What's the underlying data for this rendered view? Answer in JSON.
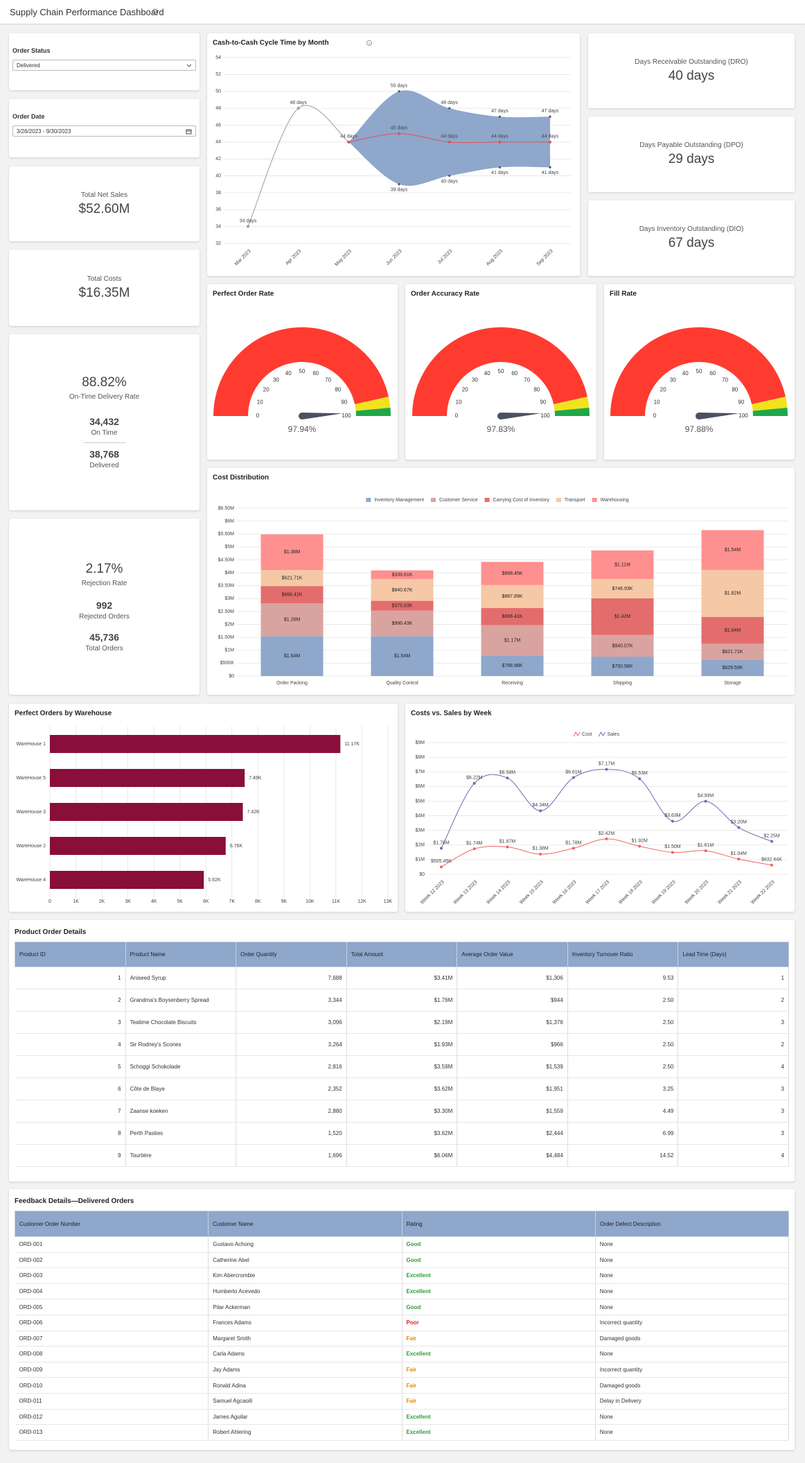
{
  "header": {
    "title": "Supply Chain Performance Dashboard"
  },
  "filters": {
    "order_status": {
      "label": "Order Status",
      "value": "Delivered"
    },
    "order_date": {
      "label": "Order Date",
      "value": "3/26/2023 - 9/30/2023"
    }
  },
  "kpis": {
    "total_net_sales": {
      "label": "Total Net Sales",
      "value": "$52.60M"
    },
    "total_costs": {
      "label": "Total Costs",
      "value": "$16.35M"
    },
    "on_time": {
      "rate": "88.82%",
      "rate_label": "On-Time Delivery Rate",
      "on_time": "34,432",
      "on_time_label": "On Time",
      "delivered": "38,768",
      "delivered_label": "Delivered"
    },
    "rejection": {
      "rate": "2.17%",
      "rate_label": "Rejection Rate",
      "rejected": "992",
      "rejected_label": "Rejected Orders",
      "total": "45,736",
      "total_label": "Total Orders"
    },
    "dro": {
      "label": "Days Receivable Outstanding (DRO)",
      "value": "40 days"
    },
    "dpo": {
      "label": "Days Payable Outstanding (DPO)",
      "value": "29 days"
    },
    "dio": {
      "label": "Days Inventory Outstanding (DIO)",
      "value": "67 days"
    }
  },
  "chart_data": [
    {
      "type": "line",
      "title": "Cash-to-Cash Cycle Time by Month",
      "categories": [
        "Mar 2023",
        "Apr 2023",
        "May 2023",
        "Jun 2023",
        "Jul 2023",
        "Aug 2023",
        "Sep 2023"
      ],
      "ylim": [
        32,
        54
      ],
      "yticks": [
        32,
        34,
        36,
        38,
        40,
        42,
        44,
        46,
        48,
        50,
        52,
        54
      ],
      "grid": true,
      "range": {
        "color": "#8ea7cb",
        "upper": [
          null,
          null,
          44,
          50,
          48,
          47,
          47
        ],
        "lower": [
          null,
          null,
          44,
          39,
          40,
          41,
          41
        ],
        "upper_labels": [
          null,
          null,
          null,
          "50 days",
          "48 days",
          "47 days",
          "47 days"
        ],
        "lower_labels": [
          null,
          null,
          null,
          "39 days",
          "40 days",
          "41 days",
          "41 days"
        ]
      },
      "series": [
        {
          "color": "#9a9a9a",
          "values": [
            34,
            48,
            44,
            null,
            null,
            null,
            null
          ],
          "value_labels": [
            "34 days",
            "48 days",
            null,
            null,
            null,
            null,
            null
          ]
        },
        {
          "color": "#e05252",
          "values": [
            null,
            null,
            44,
            45,
            44,
            44,
            44
          ],
          "value_labels": [
            null,
            null,
            "44 days",
            "45 days",
            "44 days",
            "44 days",
            "44 days"
          ]
        }
      ]
    },
    {
      "type": "gauge",
      "title": "Perfect Order Rate",
      "value": 97.94,
      "value_label": "97.94%",
      "lim": [
        0,
        100
      ],
      "ticks": [
        0,
        10,
        20,
        30,
        40,
        50,
        60,
        70,
        80,
        90,
        100
      ],
      "bands": [
        {
          "from": 0,
          "to": 93,
          "color": "#ff3b30"
        },
        {
          "from": 93,
          "to": 97,
          "color": "#f2e21c"
        },
        {
          "from": 97,
          "to": 100,
          "color": "#1fa84a"
        }
      ],
      "needle_color": "#4a5160"
    },
    {
      "type": "gauge",
      "title": "Order Accuracy Rate",
      "value": 97.83,
      "value_label": "97.83%",
      "lim": [
        0,
        100
      ],
      "ticks": [
        0,
        10,
        20,
        30,
        40,
        50,
        60,
        70,
        80,
        90,
        100
      ],
      "bands": [
        {
          "from": 0,
          "to": 93,
          "color": "#ff3b30"
        },
        {
          "from": 93,
          "to": 97,
          "color": "#f2e21c"
        },
        {
          "from": 97,
          "to": 100,
          "color": "#1fa84a"
        }
      ],
      "needle_color": "#4a5160"
    },
    {
      "type": "gauge",
      "title": "Fill Rate",
      "value": 97.88,
      "value_label": "97.88%",
      "lim": [
        0,
        100
      ],
      "ticks": [
        0,
        10,
        20,
        30,
        40,
        50,
        60,
        70,
        80,
        90,
        100
      ],
      "bands": [
        {
          "from": 0,
          "to": 93,
          "color": "#ff3b30"
        },
        {
          "from": 93,
          "to": 97,
          "color": "#f2e21c"
        },
        {
          "from": 97,
          "to": 100,
          "color": "#1fa84a"
        }
      ],
      "needle_color": "#4a5160"
    },
    {
      "type": "bar",
      "stacked": true,
      "title": "Cost Distribution",
      "categories": [
        "Order Packing",
        "Quality Control",
        "Receiving",
        "Shipping",
        "Storage"
      ],
      "ylim": [
        0,
        6500000
      ],
      "yticks": [
        {
          "value": 0,
          "label": "$0"
        },
        {
          "value": 500000,
          "label": "$500K"
        },
        {
          "value": 1000000,
          "label": "$1M"
        },
        {
          "value": 1500000,
          "label": "$1.50M"
        },
        {
          "value": 2000000,
          "label": "$2M"
        },
        {
          "value": 2500000,
          "label": "$2.50M"
        },
        {
          "value": 3000000,
          "label": "$3M"
        },
        {
          "value": 3500000,
          "label": "$3.50M"
        },
        {
          "value": 4000000,
          "label": "$4M"
        },
        {
          "value": 4500000,
          "label": "$4.50M"
        },
        {
          "value": 5000000,
          "label": "$5M"
        },
        {
          "value": 5500000,
          "label": "$5.50M"
        },
        {
          "value": 6000000,
          "label": "$6M"
        },
        {
          "value": 6500000,
          "label": "$6.50M"
        }
      ],
      "grid": true,
      "series": [
        {
          "name": "Inventory Management",
          "color": "#8ea7cb",
          "values": [
            1540000,
            1540000,
            798980,
            750560,
            629590
          ],
          "value_labels": [
            "$1.54M",
            "$1.54M",
            "$798.98K",
            "$750.56K",
            "$629.59K"
          ]
        },
        {
          "name": "Customer Service",
          "color": "#d9a3a0",
          "values": [
            1280000,
            996430,
            1170000,
            840070,
            621710
          ],
          "value_labels": [
            "$1.28M",
            "$996.43K",
            "$1.17M",
            "$840.07K",
            "$621.71K"
          ]
        },
        {
          "name": "Carrying Cost of Inventory",
          "color": "#e36d6d",
          "values": [
            666410,
            375630,
            666410,
            1420000,
            1040000
          ],
          "value_labels": [
            "$666.41K",
            "$375.63K",
            "$666.41K",
            "$1.42M",
            "$1.04M"
          ]
        },
        {
          "name": "Transport",
          "color": "#f5c8a6",
          "values": [
            621710,
            840670,
            887890,
            746930,
            1820000
          ],
          "value_labels": [
            "$621.71K",
            "$840.67K",
            "$887.89K",
            "$746.93K",
            "$1.82M"
          ]
        },
        {
          "name": "Warehousing",
          "color": "#ff9090",
          "values": [
            1380000,
            339610,
            898450,
            1110000,
            1540000
          ],
          "value_labels": [
            "$1.38M",
            "$339.61K",
            "$898.45K",
            "$1.11M",
            "$1.54M"
          ]
        }
      ]
    },
    {
      "type": "bar",
      "orientation": "horizontal",
      "title": "Perfect Orders by Warehouse",
      "color": "#8a0e3a",
      "categories": [
        "WareHouse 1",
        "WareHouse 5",
        "WareHouse 3",
        "WareHouse 2",
        "WareHouse 4"
      ],
      "values": [
        11170,
        7490,
        7420,
        6760,
        5920
      ],
      "value_labels": [
        "11.17K",
        "7.49K",
        "7.42K",
        "6.76K",
        "5.92K"
      ],
      "xlim": [
        0,
        13000
      ],
      "xticks": [
        0,
        {
          "value": 1000,
          "label": "1K"
        },
        {
          "value": 2000,
          "label": "2K"
        },
        {
          "value": 3000,
          "label": "3K"
        },
        {
          "value": 4000,
          "label": "4K"
        },
        {
          "value": 5000,
          "label": "5K"
        },
        {
          "value": 6000,
          "label": "6K"
        },
        {
          "value": 7000,
          "label": "7K"
        },
        {
          "value": 8000,
          "label": "8K"
        },
        {
          "value": 9000,
          "label": "9K"
        },
        {
          "value": 10000,
          "label": "10K"
        },
        {
          "value": 11000,
          "label": "11K"
        },
        {
          "value": 12000,
          "label": "12K"
        },
        {
          "value": 13000,
          "label": "13K"
        }
      ],
      "grid": true
    },
    {
      "type": "line",
      "title": "Costs vs. Sales by Week",
      "categories": [
        "Week 12 2023",
        "Week 13 2023",
        "Week 14 2023",
        "Week 15 2023",
        "Week 16 2023",
        "Week 17 2023",
        "Week 18 2023",
        "Week 19 2023",
        "Week 20 2023",
        "Week 21 2023",
        "Week 22 2023"
      ],
      "ylim": [
        0,
        9000000
      ],
      "yticks": [
        {
          "value": 0,
          "label": "$0"
        },
        {
          "value": 1000000,
          "label": "$1M"
        },
        {
          "value": 2000000,
          "label": "$2M"
        },
        {
          "value": 3000000,
          "label": "$3M"
        },
        {
          "value": 4000000,
          "label": "$4M"
        },
        {
          "value": 5000000,
          "label": "$5M"
        },
        {
          "value": 6000000,
          "label": "$6M"
        },
        {
          "value": 7000000,
          "label": "$7M"
        },
        {
          "value": 8000000,
          "label": "$8M"
        },
        {
          "value": 9000000,
          "label": "$9M"
        }
      ],
      "grid": true,
      "series": [
        {
          "name": "Cost",
          "color": "#f06464",
          "values": [
            505450,
            1740000,
            1870000,
            1380000,
            1780000,
            2420000,
            1920000,
            1500000,
            1610000,
            1040000,
            632640
          ],
          "value_labels": [
            "$505.45K",
            "$1.74M",
            "$1.87M",
            "$1.38M",
            "$1.78M",
            "$2.42M",
            "$1.92M",
            "$1.50M",
            "$1.61M",
            "$1.04M",
            "$632.64K"
          ]
        },
        {
          "name": "Sales",
          "color": "#6a6db3",
          "values": [
            1780000,
            6220000,
            6580000,
            4340000,
            6610000,
            7170000,
            6530000,
            3630000,
            4990000,
            3200000,
            2250000
          ],
          "value_labels": [
            "$1.78M",
            "$6.22M",
            "$6.58M",
            "$4.34M",
            "$6.61M",
            "$7.17M",
            "$6.53M",
            "$3.63M",
            "$4.99M",
            "$3.20M",
            "$2.25M"
          ]
        }
      ]
    }
  ],
  "product_table": {
    "title": "Product Order Details",
    "columns": [
      "Product ID",
      "Product Name",
      "Order Quantity",
      "Total Amount",
      "Average Order Value",
      "Inventory Turnover Ratio",
      "Lead Time (Days)"
    ],
    "rows": [
      [
        "1",
        "Aniseed Syrup",
        "7,688",
        "$3.41M",
        "$1,306",
        "9.53",
        "1"
      ],
      [
        "2",
        "Grandma's Boysenberry Spread",
        "3,344",
        "$1.76M",
        "$944",
        "2.50",
        "2"
      ],
      [
        "3",
        "Teatime Chocolate Biscuits",
        "3,096",
        "$2.19M",
        "$1,376",
        "2.50",
        "3"
      ],
      [
        "4",
        "Sir Rodney's Scones",
        "3,264",
        "$1.93M",
        "$966",
        "2.50",
        "2"
      ],
      [
        "5",
        "Schoggi Schokolade",
        "2,816",
        "$3.59M",
        "$1,539",
        "2.50",
        "4"
      ],
      [
        "6",
        "Côte de Blaye",
        "2,352",
        "$3.62M",
        "$1,951",
        "3.25",
        "3"
      ],
      [
        "7",
        "Zaanse koeken",
        "2,880",
        "$3.30M",
        "$1,559",
        "4.49",
        "3"
      ],
      [
        "8",
        "Perth Pasties",
        "1,520",
        "$3.62M",
        "$2,444",
        "6.99",
        "3"
      ],
      [
        "9",
        "Tourtière",
        "1,696",
        "$6.06M",
        "$4,484",
        "14.52",
        "4"
      ]
    ]
  },
  "feedback_table": {
    "title": "Feedback Details—Delivered Orders",
    "columns": [
      "Customer Order Number",
      "Customer Name",
      "Rating",
      "Order Defect Description"
    ],
    "rating_colors": {
      "Good": "#2e9e3e",
      "Excellent": "#2e9e3e",
      "Fair": "#e08a00",
      "Poor": "#e02020"
    },
    "rows": [
      [
        "ORD-001",
        "Gustavo Achong",
        "Good",
        "None"
      ],
      [
        "ORD-002",
        "Catherine Abel",
        "Good",
        "None"
      ],
      [
        "ORD-003",
        "Kim Abercrombie",
        "Excellent",
        "None"
      ],
      [
        "ORD-004",
        "Humberto Acevedo",
        "Excellent",
        "None"
      ],
      [
        "ORD-005",
        "Pilar Ackerman",
        "Good",
        "None"
      ],
      [
        "ORD-006",
        "Frances Adams",
        "Poor",
        "Incorrect quantity"
      ],
      [
        "ORD-007",
        "Margaret Smith",
        "Fair",
        "Damaged goods"
      ],
      [
        "ORD-008",
        "Carla Adams",
        "Excellent",
        "None"
      ],
      [
        "ORD-009",
        "Jay Adams",
        "Fair",
        "Incorrect quantity"
      ],
      [
        "ORD-010",
        "Ronald Adina",
        "Fair",
        "Damaged goods"
      ],
      [
        "ORD-011",
        "Samuel Agcaoili",
        "Fair",
        "Delay in Delivery"
      ],
      [
        "ORD-012",
        "James Aguilar",
        "Excellent",
        "None"
      ],
      [
        "ORD-013",
        "Robert Ahlering",
        "Excellent",
        "None"
      ]
    ]
  }
}
